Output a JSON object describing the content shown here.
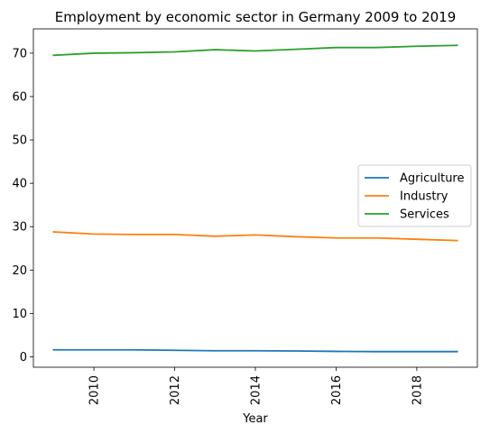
{
  "chart_data": {
    "type": "line",
    "title": "Employment by economic sector in Germany 2009 to 2019",
    "xlabel": "Year",
    "ylabel": "",
    "x": [
      2009,
      2010,
      2011,
      2012,
      2013,
      2014,
      2015,
      2016,
      2017,
      2018,
      2019
    ],
    "xlim": [
      2008.5,
      2019.5
    ],
    "ylim": [
      -2.4,
      75.6
    ],
    "xticks": [
      2010,
      2012,
      2014,
      2016,
      2018
    ],
    "yticks": [
      0,
      10,
      20,
      30,
      40,
      50,
      60,
      70
    ],
    "grid": false,
    "legend_position": "center-right",
    "series": [
      {
        "name": "Agriculture",
        "color": "#1f77b4",
        "values": [
          1.6,
          1.6,
          1.6,
          1.5,
          1.4,
          1.4,
          1.35,
          1.25,
          1.2,
          1.2,
          1.2
        ]
      },
      {
        "name": "Industry",
        "color": "#ff7f0e",
        "values": [
          28.8,
          28.3,
          28.2,
          28.2,
          27.8,
          28.1,
          27.7,
          27.4,
          27.4,
          27.1,
          26.8
        ]
      },
      {
        "name": "Services",
        "color": "#2ca02c",
        "values": [
          69.5,
          70.0,
          70.1,
          70.3,
          70.8,
          70.5,
          70.9,
          71.3,
          71.3,
          71.6,
          71.8
        ]
      }
    ]
  }
}
